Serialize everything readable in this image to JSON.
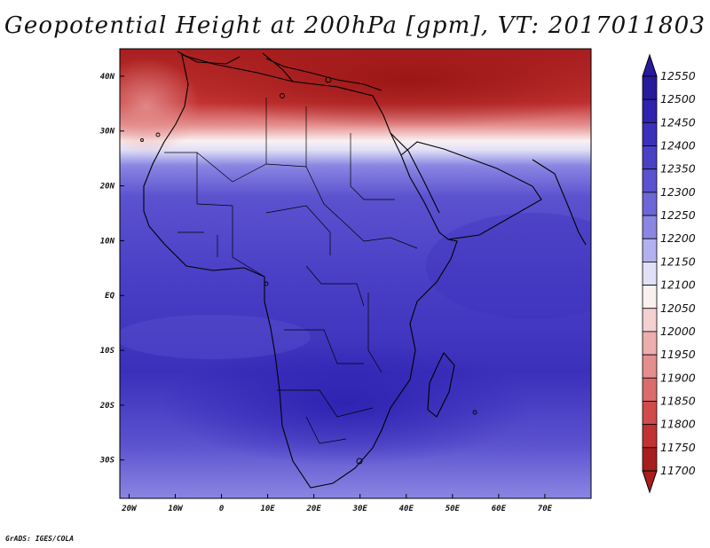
{
  "title": "Geopotential Height at 200hPa [gpm], VT: 2017011803",
  "credit": "GrADS: IGES/COLA",
  "map": {
    "lon_range": [
      -22,
      80
    ],
    "lat_range": [
      -37,
      45
    ],
    "x_ticks": [
      "20W",
      "10W",
      "0",
      "10E",
      "20E",
      "30E",
      "40E",
      "50E",
      "60E",
      "70E"
    ],
    "y_ticks": [
      "40N",
      "30N",
      "20N",
      "10N",
      "EQ",
      "10S",
      "20S",
      "30S"
    ],
    "colors": {
      "low_dark": "#a81e1e",
      "mid_white": "#fafafa",
      "high_dark": "#2a1fb0",
      "coast": "#000000"
    }
  },
  "colorbar": {
    "levels": [
      "12550",
      "12500",
      "12450",
      "12400",
      "12350",
      "12300",
      "12250",
      "12200",
      "12150",
      "12100",
      "12050",
      "12000",
      "11950",
      "11900",
      "11850",
      "11800",
      "11750",
      "11700"
    ],
    "colors": [
      "#281a9c",
      "#2f22ae",
      "#3b30bb",
      "#4a40c6",
      "#5b52cf",
      "#6d66d8",
      "#8a86e2",
      "#b2b0ee",
      "#e0e0f7",
      "#fbf0f0",
      "#f4d0d0",
      "#eeaeae",
      "#e58e8e",
      "#dc6b6b",
      "#d24b4b",
      "#c23232",
      "#a81e1e"
    ]
  }
}
